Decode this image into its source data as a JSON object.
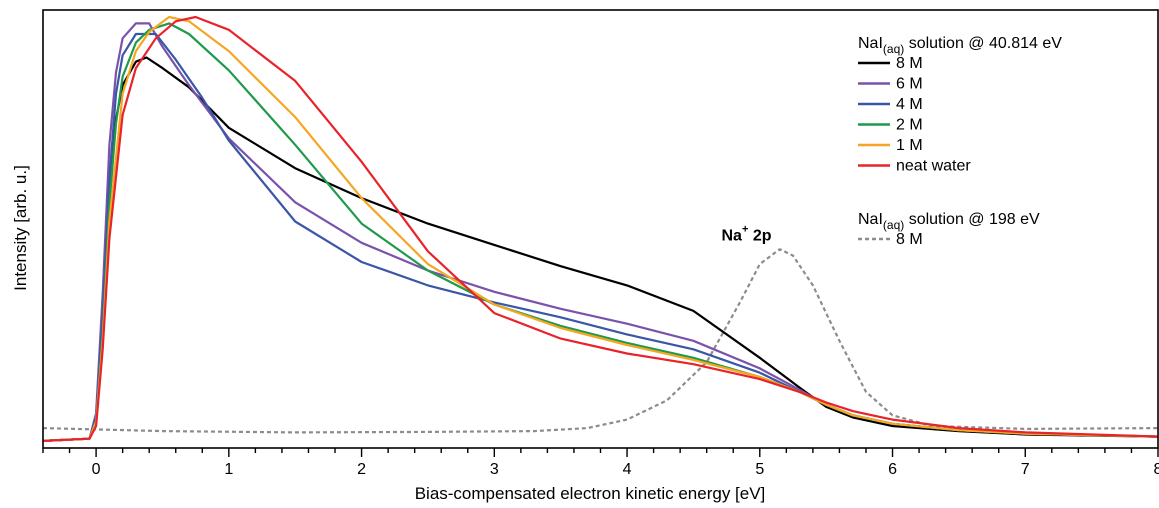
{
  "chart_data": {
    "type": "line",
    "xlabel": "Bias-compensated electron kinetic energy [eV]",
    "ylabel": "Intensity [arb. u.]",
    "xlim": [
      -0.4,
      8.0
    ],
    "ylim": [
      0,
      1.0
    ],
    "x_ticks": [
      0,
      1,
      2,
      3,
      4,
      5,
      6,
      7,
      8
    ],
    "x_tick_labels": [
      "0",
      "1",
      "2",
      "3",
      "4",
      "5",
      "6",
      "7",
      "8"
    ],
    "y_tick_labels_shown": false,
    "grid": false,
    "legend": {
      "placement": "top-right",
      "groups": [
        {
          "title_main": "NaI",
          "title_sub": "(aq)",
          "title_rest": " solution @ 40.814 eV",
          "entries": [
            "8 M",
            "6 M",
            "4 M",
            "2 M",
            "1 M",
            "neat water"
          ]
        },
        {
          "title_main": "NaI",
          "title_sub": "(aq)",
          "title_rest": " solution @ 198 eV",
          "entries": [
            "8 M"
          ]
        }
      ]
    },
    "annotation": {
      "main": "Na",
      "sup": "+",
      "rest": " 2p",
      "x": 4.9,
      "y": 0.475
    },
    "series": [
      {
        "name": "8 M",
        "color": "#000000",
        "dash": "solid",
        "points": [
          [
            -0.4,
            0.005
          ],
          [
            -0.05,
            0.01
          ],
          [
            0.0,
            0.06
          ],
          [
            0.05,
            0.3
          ],
          [
            0.1,
            0.6
          ],
          [
            0.15,
            0.76
          ],
          [
            0.2,
            0.84
          ],
          [
            0.3,
            0.895
          ],
          [
            0.38,
            0.905
          ],
          [
            0.5,
            0.88
          ],
          [
            0.7,
            0.835
          ],
          [
            1.0,
            0.74
          ],
          [
            1.5,
            0.645
          ],
          [
            2.0,
            0.575
          ],
          [
            2.5,
            0.515
          ],
          [
            3.0,
            0.465
          ],
          [
            3.5,
            0.415
          ],
          [
            4.0,
            0.37
          ],
          [
            4.5,
            0.31
          ],
          [
            5.0,
            0.2
          ],
          [
            5.3,
            0.13
          ],
          [
            5.5,
            0.085
          ],
          [
            5.7,
            0.06
          ],
          [
            6.0,
            0.04
          ],
          [
            6.5,
            0.028
          ],
          [
            7.0,
            0.02
          ],
          [
            8.0,
            0.015
          ]
        ]
      },
      {
        "name": "6 M",
        "color": "#7b52ab",
        "dash": "solid",
        "points": [
          [
            -0.4,
            0.005
          ],
          [
            -0.05,
            0.01
          ],
          [
            0.0,
            0.07
          ],
          [
            0.05,
            0.35
          ],
          [
            0.1,
            0.7
          ],
          [
            0.15,
            0.87
          ],
          [
            0.2,
            0.95
          ],
          [
            0.3,
            0.985
          ],
          [
            0.4,
            0.985
          ],
          [
            0.5,
            0.93
          ],
          [
            0.7,
            0.84
          ],
          [
            1.0,
            0.715
          ],
          [
            1.5,
            0.565
          ],
          [
            2.0,
            0.47
          ],
          [
            2.5,
            0.405
          ],
          [
            3.0,
            0.355
          ],
          [
            3.5,
            0.315
          ],
          [
            4.0,
            0.28
          ],
          [
            4.5,
            0.24
          ],
          [
            5.0,
            0.175
          ],
          [
            5.3,
            0.125
          ],
          [
            5.5,
            0.09
          ],
          [
            5.7,
            0.065
          ],
          [
            6.0,
            0.045
          ],
          [
            6.5,
            0.03
          ],
          [
            7.0,
            0.022
          ],
          [
            8.0,
            0.015
          ]
        ]
      },
      {
        "name": "4 M",
        "color": "#3a57a7",
        "dash": "solid",
        "points": [
          [
            -0.4,
            0.005
          ],
          [
            -0.05,
            0.01
          ],
          [
            0.0,
            0.06
          ],
          [
            0.05,
            0.3
          ],
          [
            0.1,
            0.62
          ],
          [
            0.15,
            0.82
          ],
          [
            0.2,
            0.91
          ],
          [
            0.3,
            0.96
          ],
          [
            0.45,
            0.96
          ],
          [
            0.6,
            0.9
          ],
          [
            0.8,
            0.81
          ],
          [
            1.0,
            0.71
          ],
          [
            1.5,
            0.52
          ],
          [
            2.0,
            0.425
          ],
          [
            2.5,
            0.37
          ],
          [
            3.0,
            0.33
          ],
          [
            3.5,
            0.295
          ],
          [
            4.0,
            0.255
          ],
          [
            4.5,
            0.22
          ],
          [
            5.0,
            0.165
          ],
          [
            5.3,
            0.12
          ],
          [
            5.5,
            0.09
          ],
          [
            5.7,
            0.065
          ],
          [
            6.0,
            0.045
          ],
          [
            6.5,
            0.03
          ],
          [
            7.0,
            0.022
          ],
          [
            8.0,
            0.015
          ]
        ]
      },
      {
        "name": "2 M",
        "color": "#1f9a4a",
        "dash": "solid",
        "points": [
          [
            -0.4,
            0.005
          ],
          [
            -0.05,
            0.01
          ],
          [
            0.0,
            0.05
          ],
          [
            0.05,
            0.26
          ],
          [
            0.1,
            0.56
          ],
          [
            0.15,
            0.75
          ],
          [
            0.2,
            0.86
          ],
          [
            0.3,
            0.94
          ],
          [
            0.4,
            0.97
          ],
          [
            0.55,
            0.985
          ],
          [
            0.7,
            0.96
          ],
          [
            1.0,
            0.875
          ],
          [
            1.5,
            0.7
          ],
          [
            2.0,
            0.515
          ],
          [
            2.5,
            0.405
          ],
          [
            3.0,
            0.325
          ],
          [
            3.5,
            0.275
          ],
          [
            4.0,
            0.235
          ],
          [
            4.5,
            0.2
          ],
          [
            5.0,
            0.155
          ],
          [
            5.3,
            0.12
          ],
          [
            5.5,
            0.09
          ],
          [
            5.7,
            0.065
          ],
          [
            6.0,
            0.045
          ],
          [
            6.5,
            0.03
          ],
          [
            7.0,
            0.022
          ],
          [
            8.0,
            0.015
          ]
        ]
      },
      {
        "name": "1 M",
        "color": "#f6a623",
        "dash": "solid",
        "points": [
          [
            -0.4,
            0.005
          ],
          [
            -0.05,
            0.01
          ],
          [
            0.0,
            0.05
          ],
          [
            0.05,
            0.24
          ],
          [
            0.1,
            0.52
          ],
          [
            0.2,
            0.82
          ],
          [
            0.3,
            0.92
          ],
          [
            0.4,
            0.965
          ],
          [
            0.55,
            1.0
          ],
          [
            0.7,
            0.99
          ],
          [
            1.0,
            0.92
          ],
          [
            1.5,
            0.765
          ],
          [
            2.0,
            0.575
          ],
          [
            2.5,
            0.42
          ],
          [
            3.0,
            0.325
          ],
          [
            3.5,
            0.27
          ],
          [
            4.0,
            0.23
          ],
          [
            4.5,
            0.195
          ],
          [
            5.0,
            0.155
          ],
          [
            5.3,
            0.12
          ],
          [
            5.5,
            0.09
          ],
          [
            5.7,
            0.065
          ],
          [
            6.0,
            0.045
          ],
          [
            6.5,
            0.03
          ],
          [
            7.0,
            0.022
          ],
          [
            8.0,
            0.015
          ]
        ]
      },
      {
        "name": "neat water",
        "color": "#e8232a",
        "dash": "solid",
        "points": [
          [
            -0.4,
            0.005
          ],
          [
            -0.05,
            0.01
          ],
          [
            0.0,
            0.04
          ],
          [
            0.05,
            0.22
          ],
          [
            0.1,
            0.48
          ],
          [
            0.2,
            0.77
          ],
          [
            0.3,
            0.88
          ],
          [
            0.45,
            0.95
          ],
          [
            0.6,
            0.99
          ],
          [
            0.75,
            1.0
          ],
          [
            1.0,
            0.97
          ],
          [
            1.5,
            0.85
          ],
          [
            2.0,
            0.66
          ],
          [
            2.5,
            0.45
          ],
          [
            3.0,
            0.305
          ],
          [
            3.5,
            0.245
          ],
          [
            4.0,
            0.21
          ],
          [
            4.5,
            0.185
          ],
          [
            5.0,
            0.15
          ],
          [
            5.3,
            0.12
          ],
          [
            5.5,
            0.095
          ],
          [
            5.7,
            0.075
          ],
          [
            6.0,
            0.055
          ],
          [
            6.5,
            0.035
          ],
          [
            7.0,
            0.025
          ],
          [
            8.0,
            0.015
          ]
        ]
      },
      {
        "name": "8 M",
        "color": "#8c8c8c",
        "dash": "dashed",
        "points": [
          [
            -0.4,
            0.035
          ],
          [
            0.5,
            0.028
          ],
          [
            1.5,
            0.025
          ],
          [
            2.5,
            0.026
          ],
          [
            3.3,
            0.028
          ],
          [
            3.7,
            0.035
          ],
          [
            4.0,
            0.055
          ],
          [
            4.3,
            0.1
          ],
          [
            4.6,
            0.19
          ],
          [
            4.85,
            0.33
          ],
          [
            5.0,
            0.42
          ],
          [
            5.15,
            0.455
          ],
          [
            5.25,
            0.44
          ],
          [
            5.4,
            0.37
          ],
          [
            5.6,
            0.24
          ],
          [
            5.8,
            0.12
          ],
          [
            6.0,
            0.065
          ],
          [
            6.3,
            0.04
          ],
          [
            7.0,
            0.033
          ],
          [
            8.0,
            0.035
          ]
        ]
      }
    ]
  }
}
